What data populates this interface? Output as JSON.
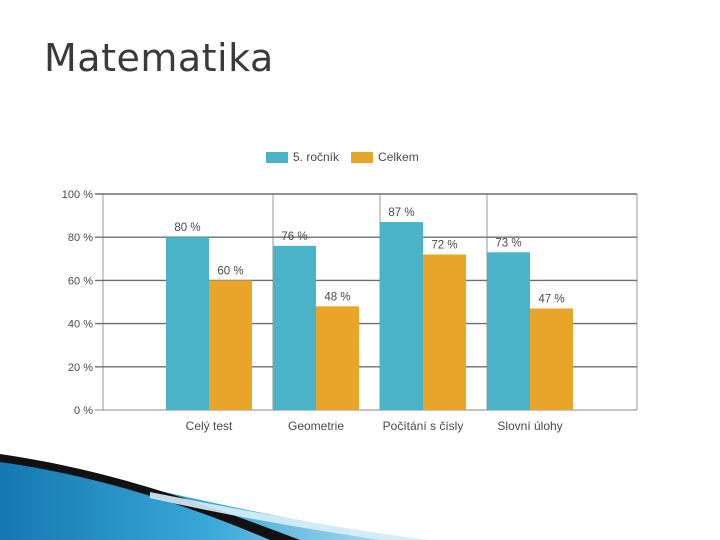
{
  "slide": {
    "title": "Matematika"
  },
  "colors": {
    "series1": "#4ab3c8",
    "series2": "#e9a52a",
    "grid": "#6e6e6e",
    "text": "#4a4a4a",
    "accent_blue": "#1f8fc0",
    "accent_dark": "#1a1a1a"
  },
  "chart_data": {
    "type": "bar",
    "categories": [
      "Celý test",
      "Geometrie",
      "Počítání s čísly",
      "Slovní úlohy"
    ],
    "series": [
      {
        "name": "5. ročník",
        "values": [
          80,
          76,
          87,
          73
        ],
        "labels": [
          "80 %",
          "76 %",
          "87 %",
          "73 %"
        ]
      },
      {
        "name": "Celkem",
        "values": [
          60,
          48,
          72,
          47
        ],
        "labels": [
          "60 %",
          "48 %",
          "72 %",
          "47 %"
        ]
      }
    ],
    "ylim": [
      0,
      100
    ],
    "yticks": [
      0,
      20,
      40,
      60,
      80,
      100
    ],
    "ytick_labels": [
      "0 %",
      "20 %",
      "40 %",
      "60 %",
      "80 %",
      "100 %"
    ],
    "legend_position": "top",
    "grid": true
  }
}
